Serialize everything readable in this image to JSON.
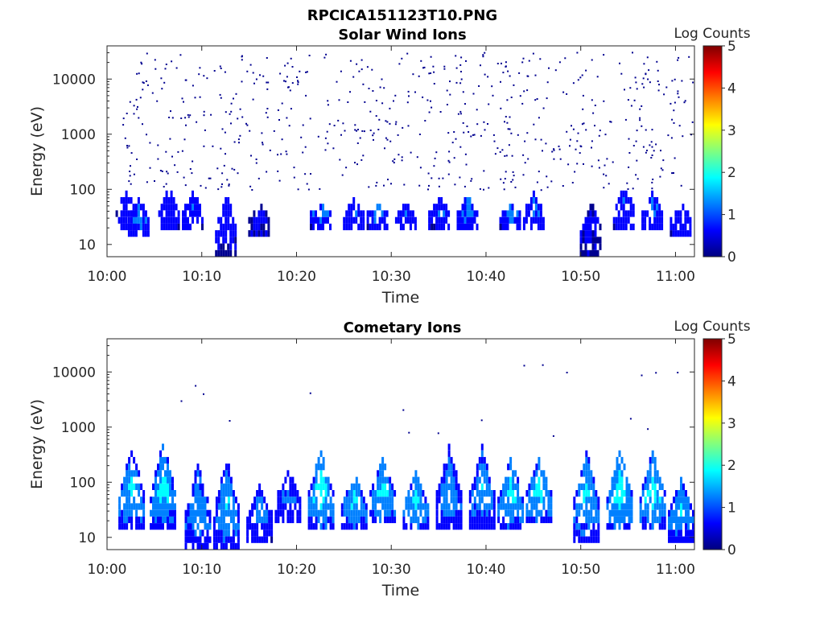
{
  "figure_title": "RPCICA151123T10.PNG",
  "colorscale": [
    "#00008f",
    "#0000ff",
    "#0080ff",
    "#00ffff",
    "#80ff80",
    "#ffff00",
    "#ff8000",
    "#ff0000",
    "#800000"
  ],
  "chart_data": [
    {
      "type": "heatmap",
      "title": "Solar Wind Ions",
      "xlabel": "Time",
      "ylabel": "Energy (eV)",
      "y_scale": "log",
      "x_ticks": [
        "10:00",
        "10:10",
        "10:20",
        "10:30",
        "10:40",
        "10:50",
        "11:00"
      ],
      "y_ticks": [
        "10",
        "100",
        "1000",
        "10000"
      ],
      "xlim": [
        "10:00",
        "11:02"
      ],
      "ylim": [
        6,
        40000
      ],
      "colorbar": {
        "label": "Log Counts",
        "range": [
          0,
          5
        ],
        "ticks": [
          "0",
          "1",
          "2",
          "3",
          "4",
          "5"
        ]
      },
      "bursts": [
        {
          "t": 2.0,
          "e_low": 20,
          "e_high": 90,
          "level": 0.8
        },
        {
          "t": 3.3,
          "e_low": 15,
          "e_high": 60,
          "level": 1.2
        },
        {
          "t": 6.5,
          "e_low": 20,
          "e_high": 100,
          "level": 1.0
        },
        {
          "t": 9.0,
          "e_low": 20,
          "e_high": 80,
          "level": 0.9
        },
        {
          "t": 12.5,
          "e_low": 8,
          "e_high": 70,
          "level": 0.7
        },
        {
          "t": 16.0,
          "e_low": 15,
          "e_high": 50,
          "level": 0.6
        },
        {
          "t": 22.5,
          "e_low": 25,
          "e_high": 45,
          "level": 1.3
        },
        {
          "t": 26.0,
          "e_low": 20,
          "e_high": 60,
          "level": 1.1
        },
        {
          "t": 28.5,
          "e_low": 25,
          "e_high": 45,
          "level": 1.3
        },
        {
          "t": 31.5,
          "e_low": 20,
          "e_high": 50,
          "level": 1.0
        },
        {
          "t": 35.0,
          "e_low": 25,
          "e_high": 60,
          "level": 1.1
        },
        {
          "t": 38.0,
          "e_low": 20,
          "e_high": 70,
          "level": 1.2
        },
        {
          "t": 42.5,
          "e_low": 25,
          "e_high": 45,
          "level": 1.3
        },
        {
          "t": 45.0,
          "e_low": 20,
          "e_high": 80,
          "level": 1.1
        },
        {
          "t": 51.0,
          "e_low": 8,
          "e_high": 60,
          "level": 0.5
        },
        {
          "t": 54.5,
          "e_low": 20,
          "e_high": 100,
          "level": 1.0
        },
        {
          "t": 57.5,
          "e_low": 20,
          "e_high": 80,
          "level": 1.1
        },
        {
          "t": 60.5,
          "e_low": 15,
          "e_high": 50,
          "level": 0.9
        }
      ]
    },
    {
      "type": "heatmap",
      "title": "Cometary Ions",
      "xlabel": "Time",
      "ylabel": "Energy (eV)",
      "y_scale": "log",
      "x_ticks": [
        "10:00",
        "10:10",
        "10:20",
        "10:30",
        "10:40",
        "10:50",
        "11:00"
      ],
      "y_ticks": [
        "10",
        "100",
        "1000",
        "10000"
      ],
      "xlim": [
        "10:00",
        "11:02"
      ],
      "ylim": [
        6,
        40000
      ],
      "colorbar": {
        "label": "Log Counts",
        "range": [
          0,
          5
        ],
        "ticks": [
          "0",
          "1",
          "2",
          "3",
          "4",
          "5"
        ]
      },
      "bursts": [
        {
          "t": 2.5,
          "e_low": 15,
          "e_high": 400,
          "level": 1.8
        },
        {
          "t": 5.8,
          "e_low": 15,
          "e_high": 500,
          "level": 1.9
        },
        {
          "t": 9.5,
          "e_low": 7,
          "e_high": 200,
          "level": 1.5
        },
        {
          "t": 12.5,
          "e_low": 7,
          "e_high": 250,
          "level": 1.7
        },
        {
          "t": 16.0,
          "e_low": 10,
          "e_high": 80,
          "level": 1.3
        },
        {
          "t": 19.0,
          "e_low": 20,
          "e_high": 150,
          "level": 1.2
        },
        {
          "t": 22.5,
          "e_low": 15,
          "e_high": 400,
          "level": 2.1
        },
        {
          "t": 26.0,
          "e_low": 15,
          "e_high": 120,
          "level": 1.8
        },
        {
          "t": 29.0,
          "e_low": 20,
          "e_high": 250,
          "level": 1.9
        },
        {
          "t": 32.5,
          "e_low": 15,
          "e_high": 150,
          "level": 1.8
        },
        {
          "t": 36.0,
          "e_low": 15,
          "e_high": 400,
          "level": 1.5
        },
        {
          "t": 39.5,
          "e_low": 15,
          "e_high": 400,
          "level": 1.6
        },
        {
          "t": 42.5,
          "e_low": 15,
          "e_high": 250,
          "level": 1.9
        },
        {
          "t": 45.5,
          "e_low": 20,
          "e_high": 250,
          "level": 2.0
        },
        {
          "t": 50.5,
          "e_low": 10,
          "e_high": 350,
          "level": 1.8
        },
        {
          "t": 54.0,
          "e_low": 15,
          "e_high": 350,
          "level": 2.1
        },
        {
          "t": 57.5,
          "e_low": 15,
          "e_high": 350,
          "level": 2.0
        },
        {
          "t": 60.5,
          "e_low": 10,
          "e_high": 100,
          "level": 1.7
        }
      ]
    }
  ]
}
